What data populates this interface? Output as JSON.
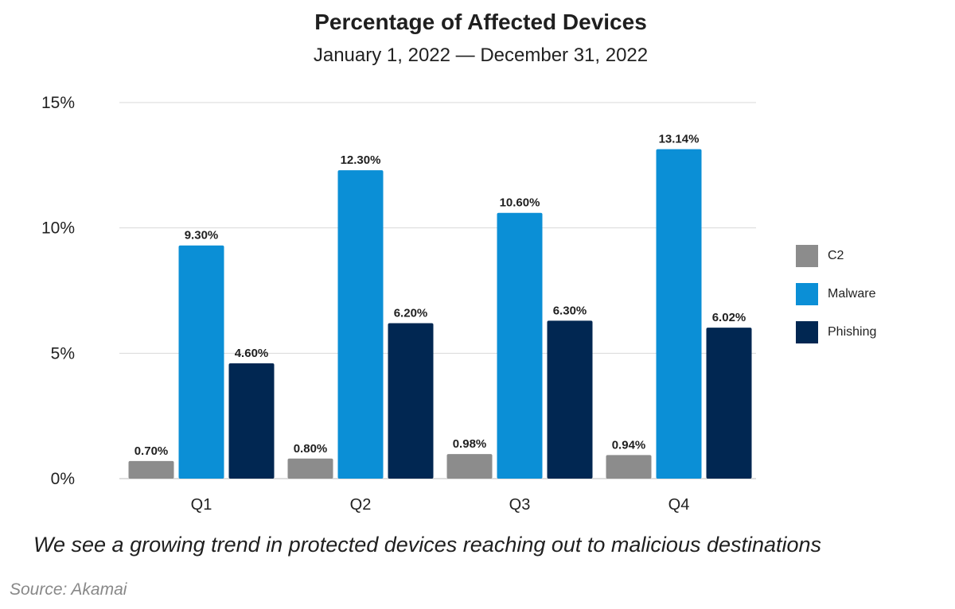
{
  "chart_data": {
    "type": "bar",
    "title": "Percentage of Affected Devices",
    "subtitle": "January 1, 2022 — December 31, 2022",
    "categories": [
      "Q1",
      "Q2",
      "Q3",
      "Q4"
    ],
    "series": [
      {
        "name": "C2",
        "color": "#8c8c8c",
        "values": [
          0.7,
          0.8,
          0.98,
          0.94
        ],
        "labels": [
          "0.70%",
          "0.80%",
          "0.98%",
          "0.94%"
        ]
      },
      {
        "name": "Malware",
        "color": "#0b8fd6",
        "values": [
          9.3,
          12.3,
          10.6,
          13.14
        ],
        "labels": [
          "9.30%",
          "12.30%",
          "10.60%",
          "13.14%"
        ]
      },
      {
        "name": "Phishing",
        "color": "#012752",
        "values": [
          4.6,
          6.2,
          6.3,
          6.02
        ],
        "labels": [
          "4.60%",
          "6.20%",
          "6.30%",
          "6.02%"
        ]
      }
    ],
    "y_ticks": [
      0,
      5,
      10,
      15
    ],
    "y_tick_labels": [
      "0%",
      "5%",
      "10%",
      "15%"
    ],
    "ylim": [
      0,
      15
    ],
    "grid": true,
    "legend_position": "right"
  },
  "caption": "We see a growing trend in protected devices reaching out to malicious destinations",
  "source": "Source: Akamai"
}
